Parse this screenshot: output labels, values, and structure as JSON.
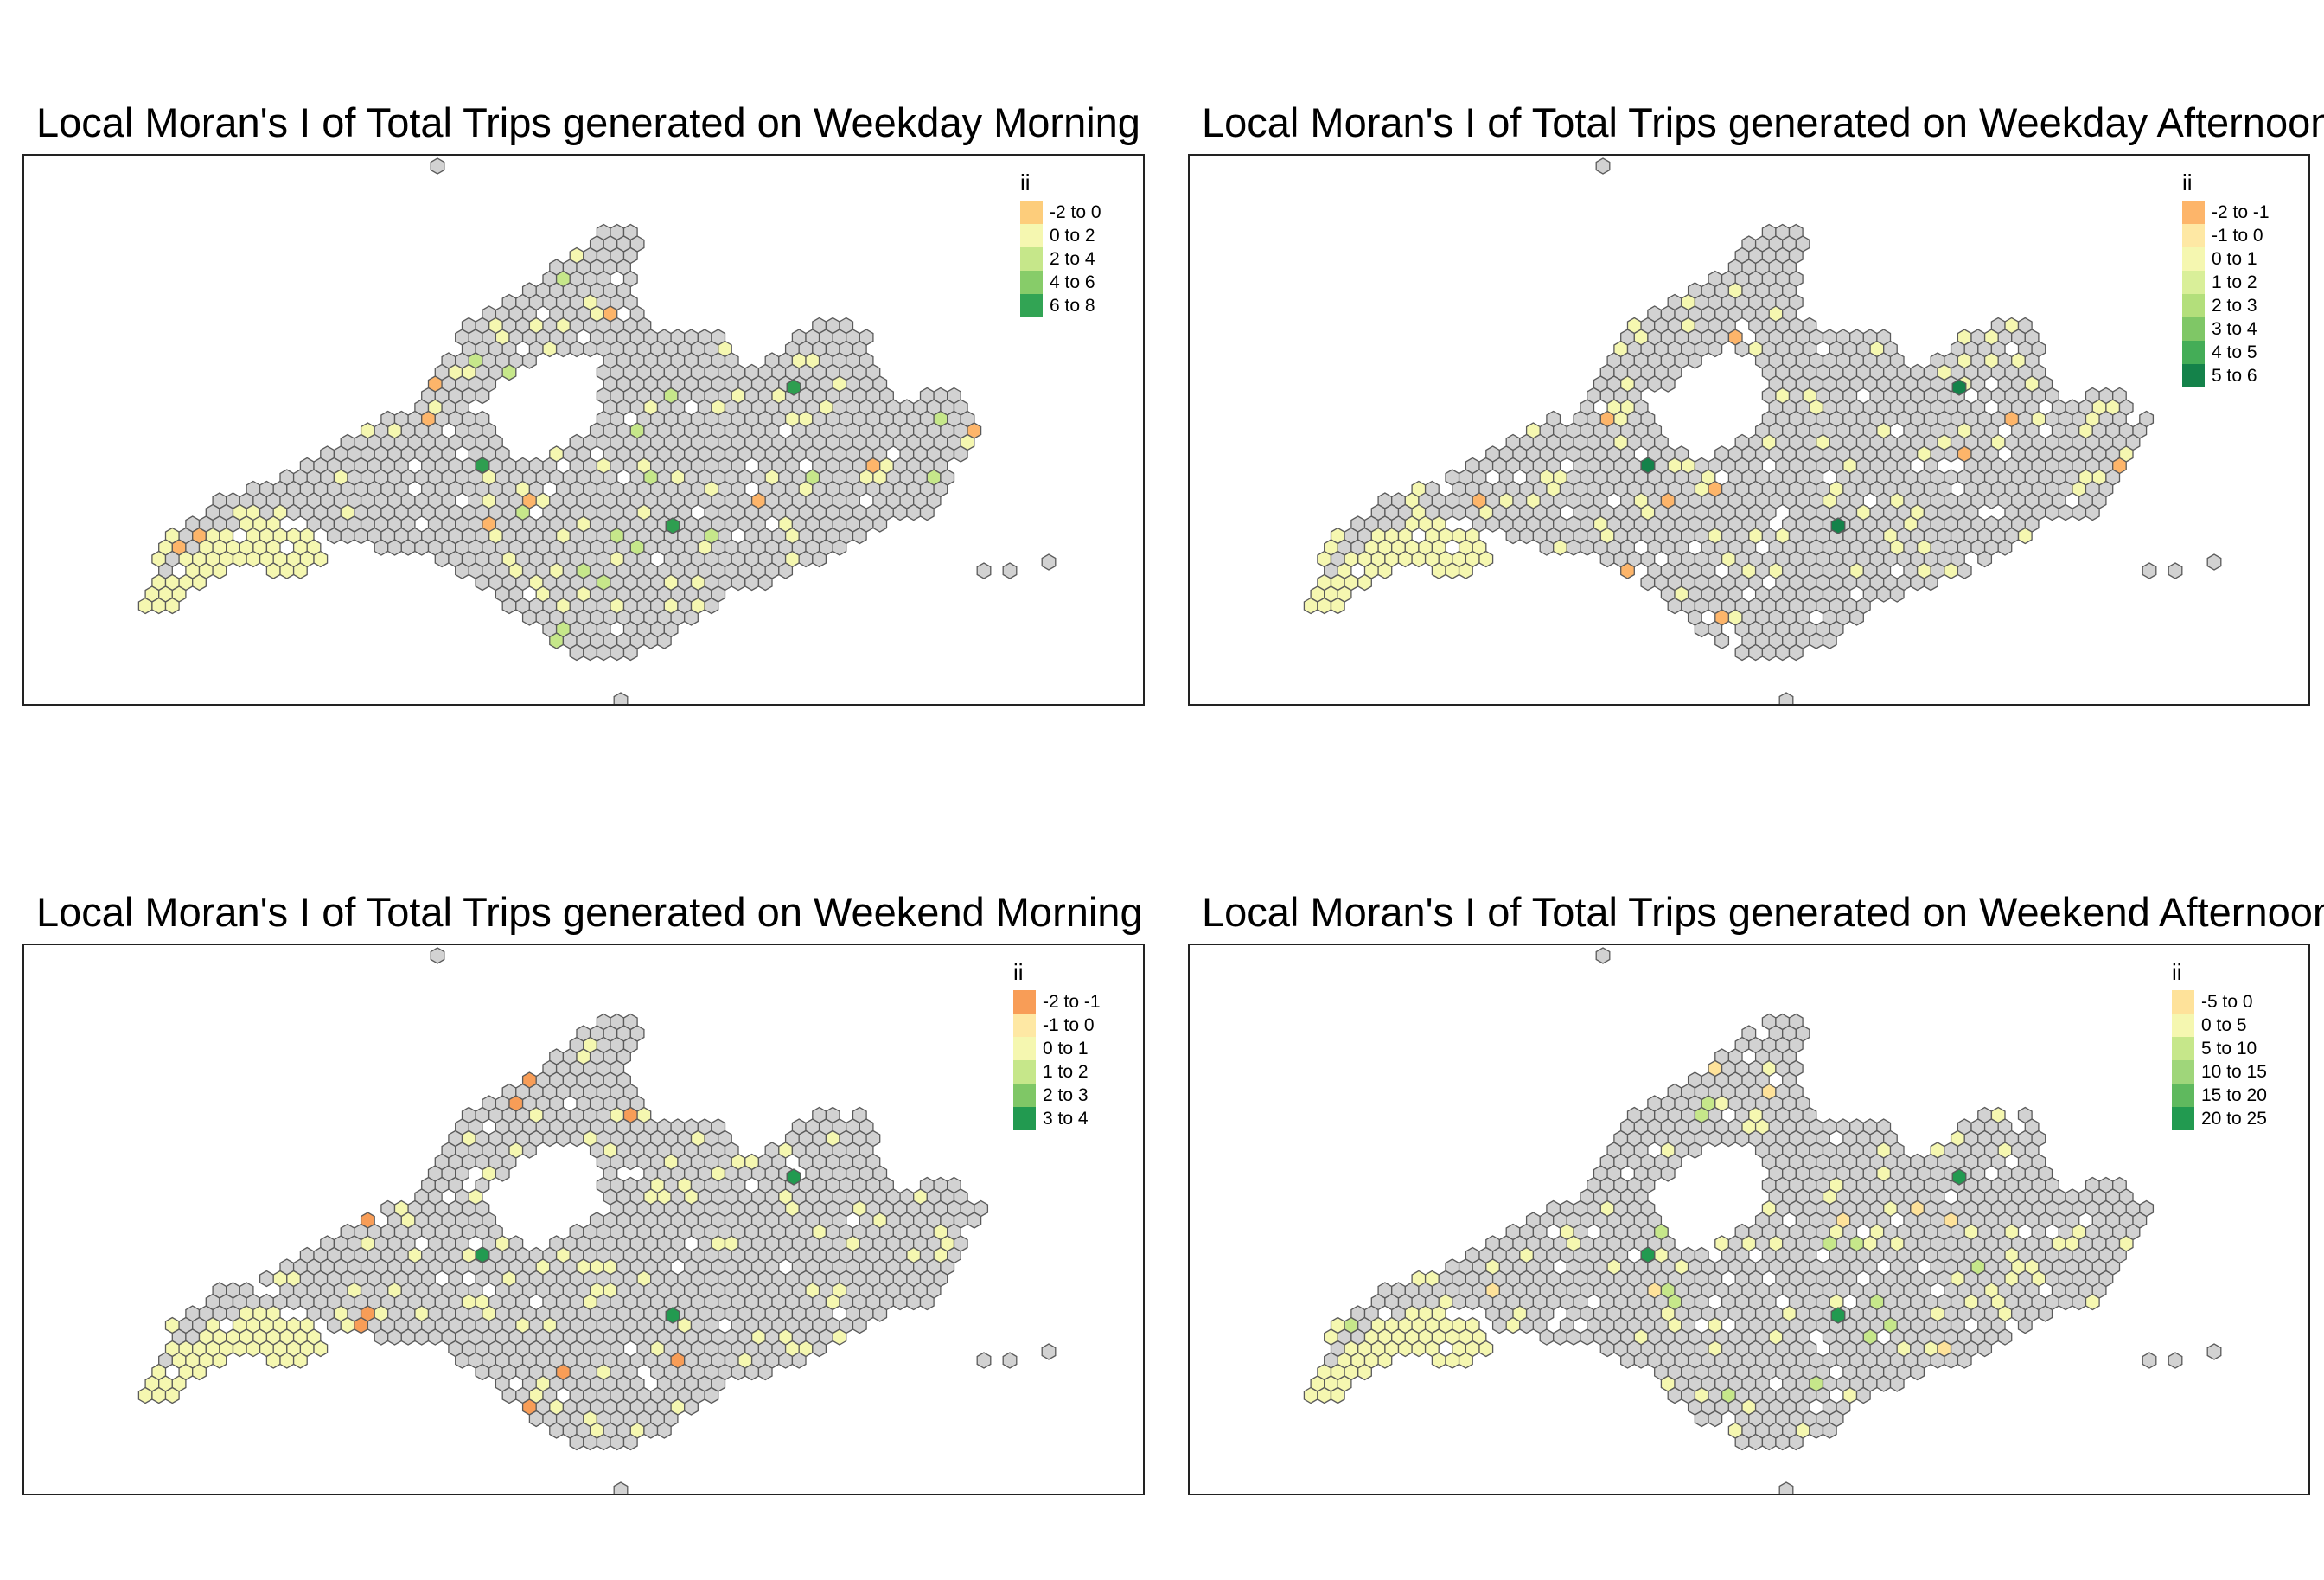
{
  "maps": [
    {
      "title": "Local Moran's I of Total Trips generated on Weekday Morning",
      "legend": {
        "title": "ii",
        "classes": [
          {
            "label": "-2 to 0",
            "color": "#fdcd7b"
          },
          {
            "label": "0 to 2",
            "color": "#f5f7b0"
          },
          {
            "label": "2 to 4",
            "color": "#c6e78a"
          },
          {
            "label": "4 to 6",
            "color": "#87cc69"
          },
          {
            "label": "6 to 8",
            "color": "#32a454"
          }
        ]
      },
      "highlight_color": "#2e9e50",
      "accent_negative": "#fdb56a"
    },
    {
      "title": "Local Moran's I of Total Trips generated on Weekday Afternoon",
      "legend": {
        "title": "ii",
        "classes": [
          {
            "label": "-2 to -1",
            "color": "#fdb56a"
          },
          {
            "label": "-1 to 0",
            "color": "#fee8a4"
          },
          {
            "label": "0 to 1",
            "color": "#f5f7b0"
          },
          {
            "label": "1 to 2",
            "color": "#d9ef99"
          },
          {
            "label": "2 to 3",
            "color": "#b3df7b"
          },
          {
            "label": "3 to 4",
            "color": "#7fc766"
          },
          {
            "label": "4 to 5",
            "color": "#44ad57"
          },
          {
            "label": "5 to 6",
            "color": "#14824a"
          }
        ]
      },
      "highlight_color": "#14824a",
      "accent_negative": "#fdb56a"
    },
    {
      "title": "Local Moran's I of Total Trips generated on Weekend Morning",
      "legend": {
        "title": "ii",
        "classes": [
          {
            "label": "-2 to -1",
            "color": "#f89d57"
          },
          {
            "label": "-1 to 0",
            "color": "#fee8a4"
          },
          {
            "label": "0 to 1",
            "color": "#f5f7b0"
          },
          {
            "label": "1 to 2",
            "color": "#c6e78a"
          },
          {
            "label": "2 to 3",
            "color": "#7fc766"
          },
          {
            "label": "3 to 4",
            "color": "#229a50"
          }
        ]
      },
      "highlight_color": "#229a50",
      "accent_negative": "#f89d57"
    },
    {
      "title": "Local Moran's I of Total Trips generated on Weekend Afternoon",
      "legend": {
        "title": "ii",
        "classes": [
          {
            "label": "-5 to 0",
            "color": "#fee29a"
          },
          {
            "label": "0 to 5",
            "color": "#f5f7b0"
          },
          {
            "label": "5 to 10",
            "color": "#c6e78a"
          },
          {
            "label": "10 to 15",
            "color": "#9fd67a"
          },
          {
            "label": "15 to 20",
            "color": "#5fb95e"
          },
          {
            "label": "20 to 25",
            "color": "#229a50"
          }
        ]
      },
      "highlight_color": "#229a50",
      "accent_negative": "#fee29a"
    }
  ],
  "colors": {
    "not_significant": "#d2d2d2",
    "hex_border": "#5a5a5a",
    "low_value": "#f5f7b0"
  }
}
